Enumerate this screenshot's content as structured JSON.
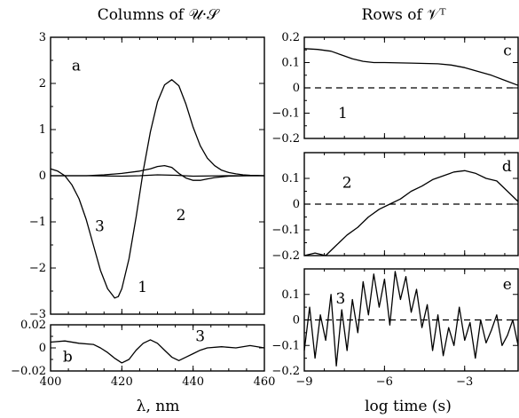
{
  "left_title": "Columns of 𝒰·𝒮",
  "right_title": "Rows of 𝒱ᵀ",
  "left_xlabel": "λ, nm",
  "right_xlabel": "log time (s)",
  "chart_data": [
    {
      "panel": "a",
      "type": "line",
      "xlim": [
        400,
        460
      ],
      "ylim": [
        -3,
        3
      ],
      "yticks": [
        -3,
        -2,
        -1,
        0,
        1,
        2,
        3
      ],
      "ytick_labels": [
        "−3",
        "−2",
        "−1",
        "0",
        "1",
        "2",
        "3"
      ],
      "xticks": [
        400,
        420,
        440,
        460
      ],
      "xtick_labels": [
        "400",
        "420",
        "440",
        "460"
      ],
      "show_xtick_labels": false,
      "annotations": [
        "a",
        "1",
        "2",
        "3"
      ],
      "series": [
        {
          "name": "1",
          "x": [
            400,
            402,
            404,
            406,
            408,
            410,
            412,
            414,
            416,
            418,
            419,
            420,
            422,
            424,
            426,
            428,
            430,
            432,
            434,
            436,
            438,
            440,
            442,
            444,
            446,
            448,
            450,
            452,
            454,
            456,
            458,
            460
          ],
          "y": [
            0.15,
            0.1,
            0.0,
            -0.2,
            -0.5,
            -0.95,
            -1.5,
            -2.05,
            -2.45,
            -2.65,
            -2.62,
            -2.45,
            -1.8,
            -0.9,
            0.1,
            0.95,
            1.6,
            1.97,
            2.08,
            1.95,
            1.55,
            1.05,
            0.65,
            0.38,
            0.22,
            0.12,
            0.07,
            0.04,
            0.02,
            0.01,
            0.005,
            0.0
          ]
        },
        {
          "name": "2",
          "x": [
            400,
            405,
            410,
            415,
            420,
            425,
            428,
            430,
            432,
            434,
            436,
            438,
            440,
            442,
            444,
            446,
            450,
            455,
            460
          ],
          "y": [
            0.0,
            0.0,
            0.0,
            0.02,
            0.05,
            0.1,
            0.15,
            0.2,
            0.22,
            0.18,
            0.05,
            -0.05,
            -0.1,
            -0.1,
            -0.07,
            -0.04,
            -0.01,
            0.0,
            0.0
          ]
        },
        {
          "name": "3",
          "x": [
            400,
            410,
            420,
            425,
            430,
            435,
            440,
            450,
            460
          ],
          "y": [
            0.0,
            0.0,
            -0.01,
            0.0,
            0.02,
            0.01,
            -0.01,
            0.0,
            0.0
          ]
        }
      ]
    },
    {
      "panel": "b",
      "type": "line",
      "xlim": [
        400,
        460
      ],
      "ylim": [
        -0.02,
        0.02
      ],
      "yticks": [
        -0.02,
        0,
        0.02
      ],
      "ytick_labels": [
        "−0.02",
        "0",
        "0.02"
      ],
      "xticks": [
        400,
        420,
        440,
        460
      ],
      "xtick_labels": [
        "400",
        "420",
        "440",
        "460"
      ],
      "show_xtick_labels": true,
      "annotations": [
        "b",
        "3"
      ],
      "series": [
        {
          "name": "3",
          "x": [
            400,
            404,
            408,
            412,
            414,
            416,
            418,
            420,
            422,
            424,
            426,
            428,
            430,
            432,
            434,
            436,
            438,
            440,
            442,
            444,
            448,
            452,
            456,
            460
          ],
          "y": [
            0.005,
            0.006,
            0.004,
            0.003,
            0.0,
            -0.004,
            -0.009,
            -0.013,
            -0.01,
            -0.002,
            0.004,
            0.007,
            0.004,
            -0.002,
            -0.008,
            -0.011,
            -0.008,
            -0.005,
            -0.002,
            0.0,
            0.001,
            0.0,
            0.002,
            0.0
          ]
        }
      ]
    },
    {
      "panel": "c",
      "type": "line",
      "xlim": [
        -9,
        -1
      ],
      "ylim": [
        -0.2,
        0.2
      ],
      "yticks": [
        -0.2,
        -0.1,
        0,
        0.1,
        0.2
      ],
      "ytick_labels": [
        "−0.2",
        "−0.1",
        "0",
        "0.1",
        "0.2"
      ],
      "xticks": [
        -9,
        -6,
        -3
      ],
      "xtick_labels": [
        "−9",
        "−6",
        "−3"
      ],
      "show_xtick_labels": false,
      "dashed_zero": true,
      "annotations": [
        "c",
        "1"
      ],
      "series": [
        {
          "name": "1",
          "x": [
            -9,
            -8.5,
            -8,
            -7.6,
            -7.2,
            -6.8,
            -6.4,
            -6,
            -5,
            -4,
            -3.5,
            -3,
            -2.5,
            -2,
            -1.5,
            -1
          ],
          "y": [
            0.155,
            0.152,
            0.145,
            0.13,
            0.115,
            0.105,
            0.1,
            0.1,
            0.098,
            0.095,
            0.09,
            0.08,
            0.065,
            0.05,
            0.03,
            0.01
          ]
        }
      ]
    },
    {
      "panel": "d",
      "type": "line",
      "xlim": [
        -9,
        -1
      ],
      "ylim": [
        -0.2,
        0.2
      ],
      "yticks": [
        -0.2,
        -0.1,
        0,
        0.1
      ],
      "ytick_labels": [
        "−0.2",
        "−0.1",
        "0",
        "0.1"
      ],
      "xticks": [
        -9,
        -6,
        -3
      ],
      "xtick_labels": [
        "−9",
        "−6",
        "−3"
      ],
      "show_xtick_labels": false,
      "dashed_zero": true,
      "annotations": [
        "d",
        "2"
      ],
      "series": [
        {
          "name": "2",
          "x": [
            -9,
            -8.6,
            -8.2,
            -7.8,
            -7.4,
            -7,
            -6.6,
            -6.2,
            -5.8,
            -5.4,
            -5,
            -4.6,
            -4.2,
            -3.8,
            -3.4,
            -3,
            -2.6,
            -2.2,
            -1.8,
            -1.4,
            -1
          ],
          "y": [
            -0.2,
            -0.19,
            -0.2,
            -0.16,
            -0.12,
            -0.09,
            -0.05,
            -0.02,
            0.0,
            0.02,
            0.05,
            0.07,
            0.095,
            0.11,
            0.125,
            0.13,
            0.12,
            0.1,
            0.09,
            0.05,
            0.01
          ]
        }
      ]
    },
    {
      "panel": "e",
      "type": "line",
      "xlim": [
        -9,
        -1
      ],
      "ylim": [
        -0.2,
        0.2
      ],
      "yticks": [
        -0.2,
        -0.1,
        0,
        0.1
      ],
      "ytick_labels": [
        "−0.2",
        "−0.1",
        "0",
        "0.1"
      ],
      "xticks": [
        -9,
        -6,
        -3
      ],
      "xtick_labels": [
        "−9",
        "−6",
        "−3"
      ],
      "show_xtick_labels": true,
      "dashed_zero": true,
      "annotations": [
        "e",
        "3"
      ],
      "series": [
        {
          "name": "3",
          "x": [
            -9,
            -8.8,
            -8.6,
            -8.4,
            -8.2,
            -8,
            -7.8,
            -7.6,
            -7.4,
            -7.2,
            -7,
            -6.8,
            -6.6,
            -6.4,
            -6.2,
            -6,
            -5.8,
            -5.6,
            -5.4,
            -5.2,
            -5,
            -4.8,
            -4.6,
            -4.4,
            -4.2,
            -4,
            -3.8,
            -3.6,
            -3.4,
            -3.2,
            -3,
            -2.8,
            -2.6,
            -2.4,
            -2.2,
            -2,
            -1.8,
            -1.6,
            -1.4,
            -1.2,
            -1
          ],
          "y": [
            -0.12,
            0.05,
            -0.15,
            0.02,
            -0.08,
            0.1,
            -0.18,
            0.04,
            -0.12,
            0.08,
            -0.05,
            0.15,
            0.02,
            0.18,
            0.05,
            0.16,
            -0.02,
            0.19,
            0.08,
            0.17,
            0.03,
            0.12,
            -0.03,
            0.06,
            -0.12,
            0.02,
            -0.14,
            -0.03,
            -0.1,
            0.05,
            -0.08,
            -0.01,
            -0.15,
            0.0,
            -0.09,
            -0.04,
            0.02,
            -0.1,
            -0.06,
            0.0,
            -0.1
          ]
        }
      ]
    }
  ]
}
